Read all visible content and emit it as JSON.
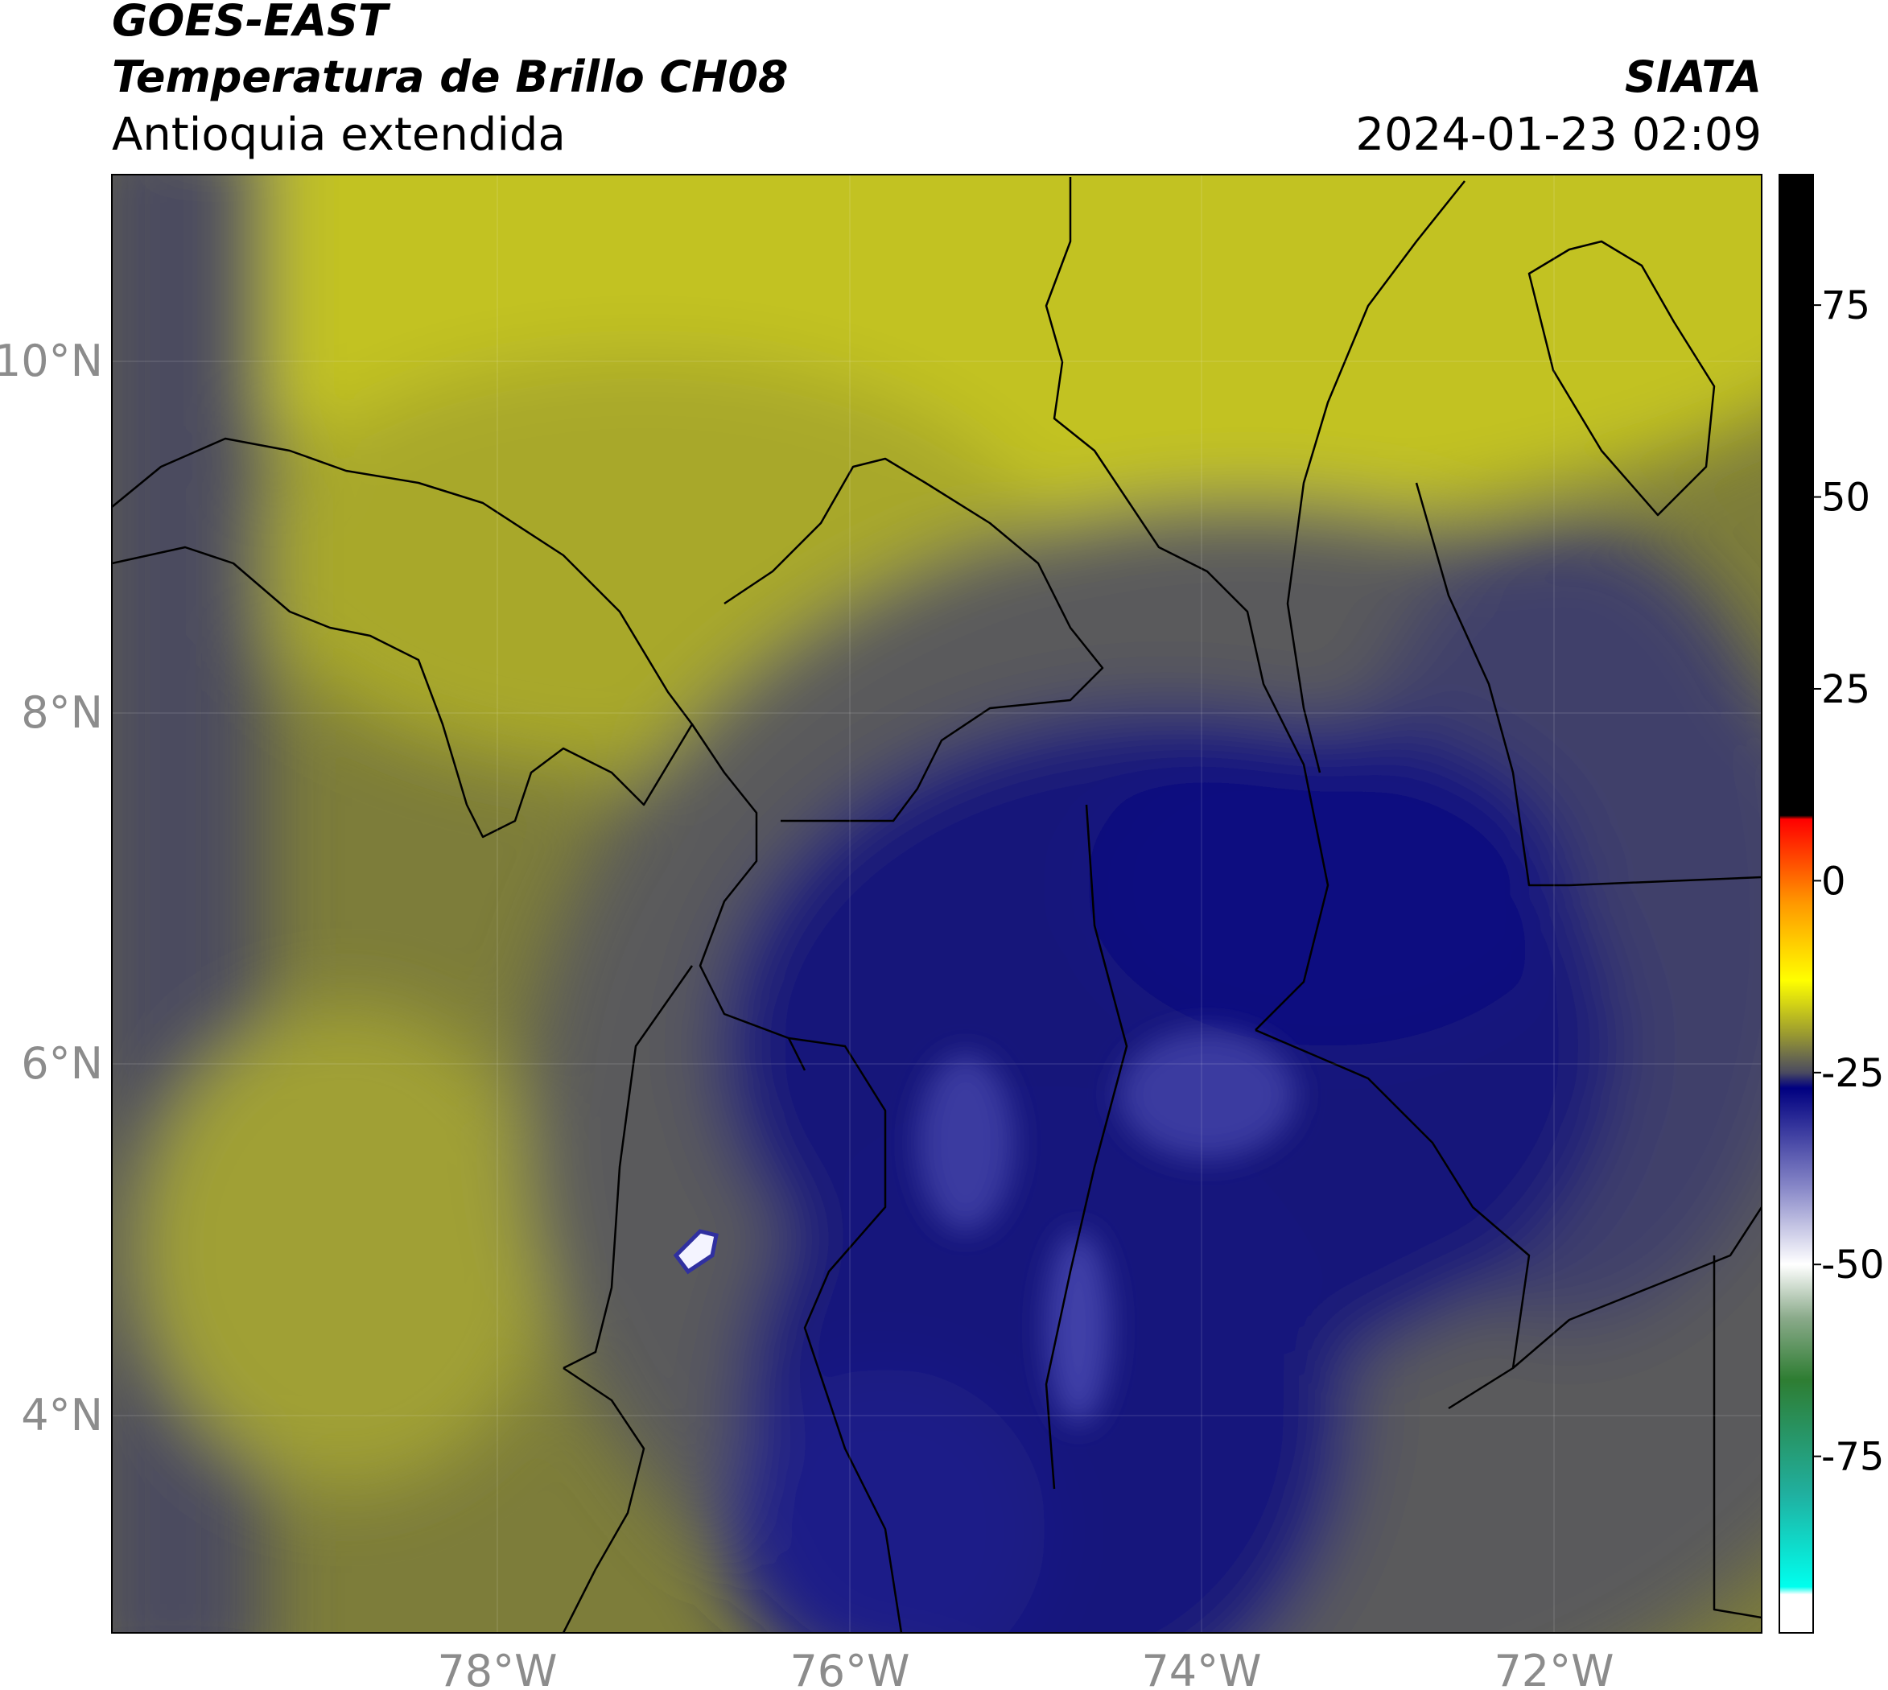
{
  "header": {
    "title": "GOES-EAST",
    "subtitle": "Temperatura de Brillo CH08",
    "region": "Antioquia extendida",
    "source": "SIATA",
    "datetime": "2024-01-23 02:09"
  },
  "map": {
    "lon_labels": [
      "78°W",
      "76°W",
      "74°W",
      "72°W"
    ],
    "lat_labels": [
      "10°N",
      "8°N",
      "6°N",
      "4°N"
    ]
  },
  "colorbar": {
    "range": [
      -98,
      92
    ],
    "ticks": [
      -75,
      -50,
      -25,
      0,
      25,
      50,
      75
    ],
    "stops": [
      {
        "value": 92,
        "color": "#000000"
      },
      {
        "value": 8.5,
        "color": "#000000"
      },
      {
        "value": 8,
        "color": "#ff0000"
      },
      {
        "value": -3,
        "color": "#ff9900"
      },
      {
        "value": -13,
        "color": "#ffff00"
      },
      {
        "value": -20,
        "color": "#9a9a30"
      },
      {
        "value": -25,
        "color": "#4a4a60"
      },
      {
        "value": -27,
        "color": "#000080"
      },
      {
        "value": -40,
        "color": "#8888c8"
      },
      {
        "value": -50,
        "color": "#ffffff"
      },
      {
        "value": -57,
        "color": "#8aaa8a"
      },
      {
        "value": -65,
        "color": "#2e7d32"
      },
      {
        "value": -80,
        "color": "#20b0a0"
      },
      {
        "value": -92,
        "color": "#00ffee"
      },
      {
        "value": -93,
        "color": "#ffffff"
      },
      {
        "value": -98,
        "color": "#ffffff"
      }
    ]
  }
}
